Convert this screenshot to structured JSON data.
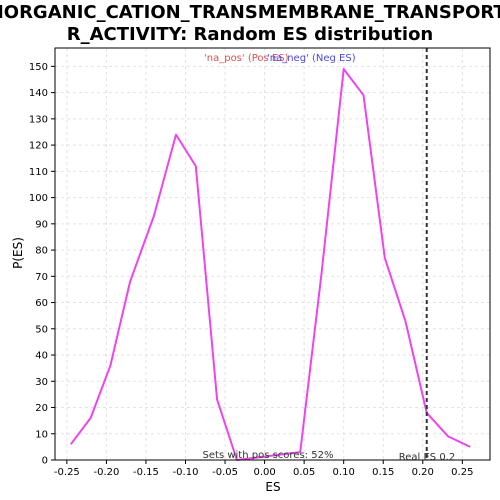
{
  "chart_data": {
    "type": "line",
    "title_line1": "INORGANIC_CATION_TRANSMEMBRANE_TRANSPORTE",
    "title_line2": "R_ACTIVITY: Random ES distribution",
    "xlabel": "ES",
    "ylabel": "P(ES)",
    "xlim": [
      -0.265,
      0.285
    ],
    "ylim": [
      0,
      157
    ],
    "xticks": [
      -0.25,
      -0.2,
      -0.15,
      -0.1,
      -0.05,
      0.0,
      0.05,
      0.1,
      0.15,
      0.2,
      0.25
    ],
    "xtick_labels": [
      "-0.25",
      "-0.20",
      "-0.15",
      "-0.10",
      "-0.05",
      "0.00",
      "0.05",
      "0.10",
      "0.15",
      "0.20",
      "0.25"
    ],
    "yticks": [
      0,
      10,
      20,
      30,
      40,
      50,
      60,
      70,
      80,
      90,
      100,
      110,
      120,
      130,
      140,
      150
    ],
    "ytick_labels": [
      "0",
      "10",
      "20",
      "30",
      "40",
      "50",
      "60",
      "70",
      "80",
      "90",
      "100",
      "110",
      "120",
      "130",
      "140",
      "150"
    ],
    "grid": true,
    "legend": [
      {
        "label": "'na_pos' (Pos ES)",
        "color": "#e05050"
      },
      {
        "label": "'na_neg' (Neg ES)",
        "color": "#4a4ae0"
      }
    ],
    "legend_placement": "top-center",
    "series": [
      {
        "name": "na_pos / na_neg",
        "color": "#ee44ee",
        "x": [
          -0.245,
          -0.22,
          -0.195,
          -0.17,
          -0.14,
          -0.112,
          -0.087,
          -0.06,
          -0.035,
          0.045,
          0.072,
          0.1,
          0.125,
          0.152,
          0.178,
          0.205,
          0.232,
          0.26
        ],
        "y": [
          6,
          16,
          36,
          68,
          93,
          124,
          112,
          23,
          0,
          3,
          71,
          149,
          139,
          77,
          53,
          18,
          9,
          5
        ]
      }
    ],
    "real_es": 0.205,
    "real_es_label": "Real ES 0.2",
    "footnote": "Sets with pos scores: 52%"
  }
}
